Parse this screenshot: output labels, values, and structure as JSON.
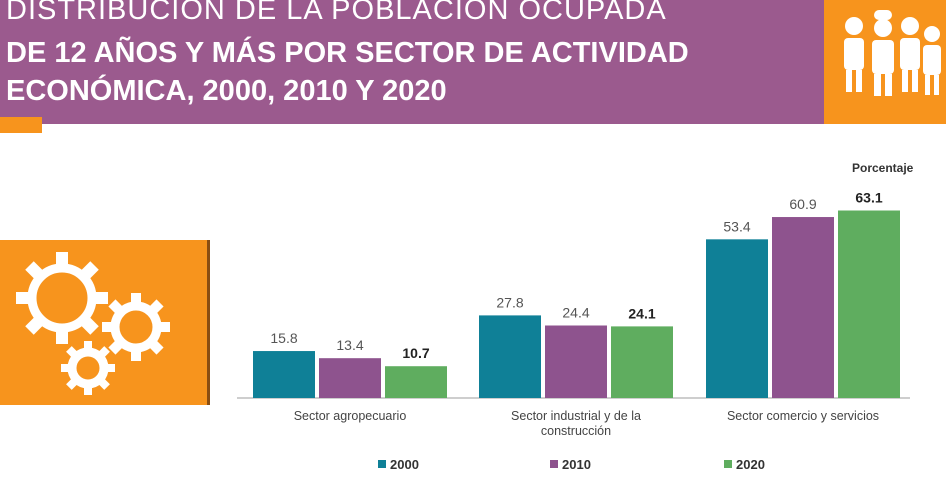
{
  "header": {
    "line1": "DISTRIBUCIÓN DE LA POBLACIÓN OCUPADA",
    "line2": "DE 12 AÑOS Y MÁS POR SECTOR DE ACTIVIDAD",
    "line3": "ECONÓMICA, 2000, 2010 Y 2020"
  },
  "icons": {
    "top_right": "people-occupations-icon",
    "left": "gears-icon"
  },
  "colors": {
    "header_bg": "#9b5a8e",
    "accent_orange": "#f7941d",
    "s2000": "#0f8097",
    "s2010": "#8e538e",
    "s2020": "#5fad5f"
  },
  "chart_data": {
    "type": "bar",
    "unit_label": "Porcentaje",
    "categories": [
      [
        "Sector agropecuario"
      ],
      [
        "Sector industrial y de la",
        "construcción"
      ],
      [
        "Sector comercio y servicios"
      ]
    ],
    "series": [
      {
        "name": "2000",
        "values": [
          15.8,
          27.8,
          53.4
        ],
        "color": "#0f8097"
      },
      {
        "name": "2010",
        "values": [
          13.4,
          24.4,
          60.9
        ],
        "color": "#8e538e"
      },
      {
        "name": "2020",
        "values": [
          10.7,
          24.1,
          63.1
        ],
        "color": "#5fad5f"
      }
    ],
    "bold_series": "2020",
    "ylim": [
      0,
      70
    ],
    "legend": "bottom"
  }
}
